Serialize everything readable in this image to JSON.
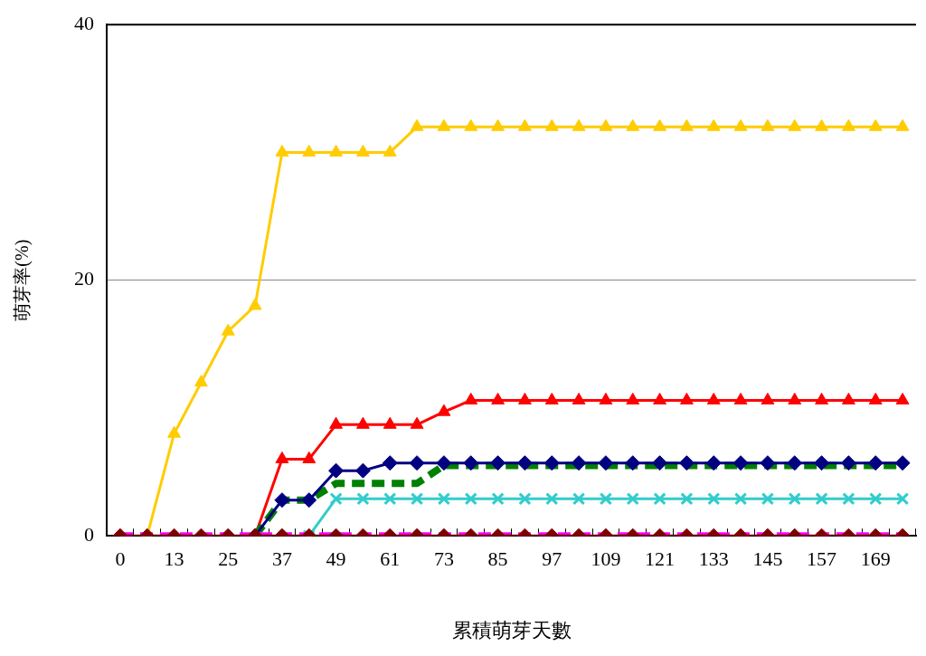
{
  "chart_data": {
    "type": "line",
    "xlabel": "累積萌芽天數",
    "ylabel": "萌芽率(%)",
    "categories": [
      "0",
      null,
      "13",
      null,
      "25",
      null,
      "37",
      null,
      "49",
      null,
      "61",
      null,
      "73",
      null,
      "85",
      null,
      "97",
      null,
      "109",
      null,
      "121",
      null,
      "133",
      null,
      "145",
      null,
      "157",
      null,
      "169",
      null
    ],
    "ylim": [
      0,
      40
    ],
    "yticks": [
      0,
      20,
      40
    ],
    "grid": "y",
    "legend": false,
    "series": [
      {
        "color": "#ffcc00",
        "marker": "triangle",
        "line_style": "solid",
        "values": [
          null,
          0,
          8,
          12,
          16,
          18,
          30,
          30,
          30,
          30,
          30,
          32,
          32,
          32,
          32,
          32,
          32,
          32,
          32,
          32,
          32,
          32,
          32,
          32,
          32,
          32,
          32,
          32,
          32,
          32
        ]
      },
      {
        "color": "#ff0000",
        "marker": "triangle",
        "line_style": "solid",
        "values": [
          null,
          null,
          null,
          null,
          null,
          0,
          6,
          6,
          8.7,
          8.7,
          8.7,
          8.7,
          9.7,
          10.6,
          10.6,
          10.6,
          10.6,
          10.6,
          10.6,
          10.6,
          10.6,
          10.6,
          10.6,
          10.6,
          10.6,
          10.6,
          10.6,
          10.6,
          10.6,
          10.6
        ]
      },
      {
        "color": "#008000",
        "marker": "none",
        "line_style": "dashed",
        "values": [
          null,
          null,
          null,
          null,
          null,
          0,
          2.8,
          2.8,
          4.1,
          4.1,
          4.1,
          4.1,
          5.5,
          5.5,
          5.5,
          5.5,
          5.5,
          5.5,
          5.5,
          5.5,
          5.5,
          5.5,
          5.5,
          5.5,
          5.5,
          5.5,
          5.5,
          5.5,
          5.5,
          5.5
        ]
      },
      {
        "color": "#000080",
        "marker": "diamond",
        "line_style": "solid",
        "values": [
          null,
          null,
          null,
          null,
          null,
          0,
          2.8,
          2.8,
          5.1,
          5.1,
          5.7,
          5.7,
          5.7,
          5.7,
          5.7,
          5.7,
          5.7,
          5.7,
          5.7,
          5.7,
          5.7,
          5.7,
          5.7,
          5.7,
          5.7,
          5.7,
          5.7,
          5.7,
          5.7,
          5.7
        ]
      },
      {
        "color": "#33cccc",
        "marker": "cross",
        "line_style": "solid",
        "values": [
          null,
          null,
          null,
          null,
          null,
          null,
          null,
          0,
          2.9,
          2.9,
          2.9,
          2.9,
          2.9,
          2.9,
          2.9,
          2.9,
          2.9,
          2.9,
          2.9,
          2.9,
          2.9,
          2.9,
          2.9,
          2.9,
          2.9,
          2.9,
          2.9,
          2.9,
          2.9,
          2.9
        ]
      },
      {
        "color": "#ff00ff",
        "marker": "none",
        "line_style": "dashed",
        "values": [
          0,
          0,
          0,
          0,
          0,
          0,
          0,
          0,
          0,
          0,
          0,
          0,
          0,
          0,
          0,
          0,
          0,
          0,
          0,
          0,
          0,
          0,
          0,
          0,
          0,
          0,
          0,
          0,
          0,
          0
        ]
      },
      {
        "color": "#800000",
        "marker": "diamond",
        "line_style": "solid",
        "values": [
          0,
          0,
          0,
          0,
          0,
          0,
          0,
          0,
          0,
          0,
          0,
          0,
          0,
          0,
          0,
          0,
          0,
          0,
          0,
          0,
          0,
          0,
          0,
          0,
          0,
          0,
          0,
          0,
          0,
          0
        ]
      }
    ]
  }
}
